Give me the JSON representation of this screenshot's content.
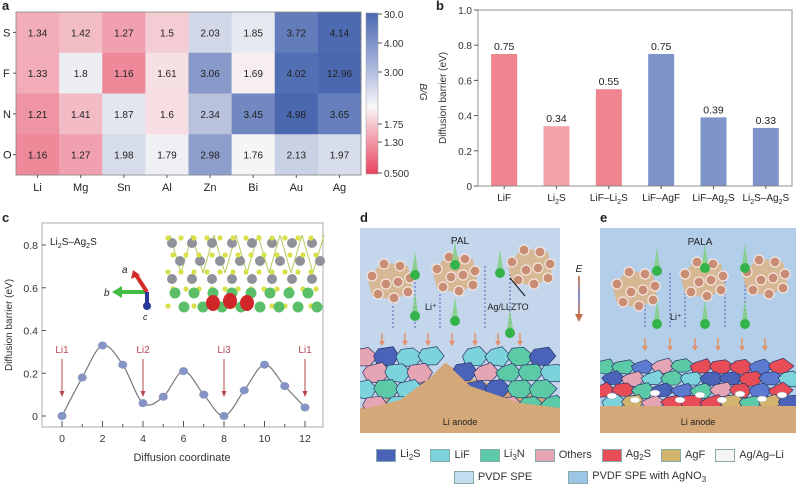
{
  "panels": {
    "a": "a",
    "b": "b",
    "c": "c",
    "d": "d",
    "e": "e"
  },
  "chart_data": [
    {
      "type": "heatmap",
      "panel": "a",
      "rows": [
        "S",
        "F",
        "N",
        "O"
      ],
      "columns": [
        "Li",
        "Mg",
        "Sn",
        "Al",
        "Zn",
        "Bi",
        "Au",
        "Ag"
      ],
      "values": [
        [
          1.34,
          1.42,
          1.27,
          1.5,
          2.03,
          1.85,
          3.72,
          4.14
        ],
        [
          1.33,
          1.8,
          1.16,
          1.61,
          3.06,
          1.69,
          4.02,
          12.96
        ],
        [
          1.21,
          1.41,
          1.87,
          1.6,
          2.34,
          3.45,
          4.98,
          3.65
        ],
        [
          1.16,
          1.27,
          1.98,
          1.79,
          2.98,
          1.76,
          2.13,
          1.97
        ]
      ],
      "value_labels": [
        [
          "1.34",
          "1.42",
          "1.27",
          "1.5",
          "2.03",
          "1.85",
          "3.72",
          "4.14"
        ],
        [
          "1.33",
          "1.8",
          "1.16",
          "1.61",
          "3.06",
          "1.69",
          "4.02",
          "12.96"
        ],
        [
          "1.21",
          "1.41",
          "1.87",
          "1.6",
          "2.34",
          "3.45",
          "4.98",
          "3.65"
        ],
        [
          "1.16",
          "1.27",
          "1.98",
          "1.79",
          "2.98",
          "1.76",
          "2.13",
          "1.97"
        ]
      ],
      "colorbar": {
        "label": "B/G",
        "ticks": [
          "30.0",
          "4.00",
          "3.00",
          "1.75",
          "1.30",
          "0.500"
        ],
        "low_color": "#e8435f",
        "mid_color": "#f8f8f8",
        "high_color": "#4a67b0"
      }
    },
    {
      "type": "bar",
      "panel": "b",
      "categories": [
        "LiF",
        "Li2S",
        "LiF–Li2S",
        "LiF–AgF",
        "LiF–Ag2S",
        "Li2S–Ag2S"
      ],
      "category_labels": [
        {
          "main": "LiF"
        },
        {
          "main": "Li",
          "sub": "2",
          "tail": "S"
        },
        {
          "main": "LiF–Li",
          "sub": "2",
          "tail": "S"
        },
        {
          "main": "LiF–AgF"
        },
        {
          "main": "LiF–Ag",
          "sub": "2",
          "tail": "S"
        },
        {
          "main": "Li",
          "sub": "2",
          "tail": "S–Ag",
          "sub2": "2",
          "tail2": "S"
        }
      ],
      "values": [
        0.75,
        0.34,
        0.55,
        0.75,
        0.39,
        0.33
      ],
      "value_labels": [
        "0.75",
        "0.34",
        "0.55",
        "0.75",
        "0.39",
        "0.33"
      ],
      "colors": [
        "#f08590",
        "#f4a3ad",
        "#f08590",
        "#7f94c9",
        "#7f94c9",
        "#7f94c9"
      ],
      "ylabel": "Diffusion barrier (eV)",
      "ylim": [
        0,
        1.0
      ],
      "yticks": [
        "0",
        "0.2",
        "0.4",
        "0.6",
        "0.8",
        "1.0"
      ]
    },
    {
      "type": "line",
      "panel": "c",
      "title": "Li2S–Ag2S",
      "x": [
        0,
        1,
        2,
        3,
        4,
        5,
        6,
        7,
        8,
        9,
        10,
        11,
        12
      ],
      "y": [
        0.0,
        0.18,
        0.33,
        0.24,
        0.06,
        0.09,
        0.21,
        0.1,
        0.0,
        0.12,
        0.24,
        0.14,
        0.04
      ],
      "xlabel": "Diffusion coordinate",
      "ylabel": "Diffusion barrier (eV)",
      "xlim": [
        -1,
        13
      ],
      "ylim": [
        -0.05,
        0.9
      ],
      "xticks": [
        "0",
        "2",
        "4",
        "6",
        "8",
        "10",
        "12"
      ],
      "yticks": [
        "0",
        "0.2",
        "0.4",
        "0.6",
        "0.8"
      ],
      "annotations": [
        {
          "text": "Li1",
          "x": 0
        },
        {
          "text": "Li2",
          "x": 4
        },
        {
          "text": "Li3",
          "x": 8
        },
        {
          "text": "Li1",
          "x": 12
        }
      ],
      "axes_labels": {
        "a": "a",
        "b": "b",
        "c": "c"
      },
      "point_color": "#8594c4",
      "line_color": "#777777",
      "arrow_color": "#b5484e"
    }
  ],
  "schematic_d": {
    "title": "PAL",
    "li_label": "Li⁺",
    "particle_label": "Ag/LLZTO",
    "anode_label": "Li anode"
  },
  "schematic_e": {
    "title": "PALA",
    "li_label": "Li⁺",
    "anode_label": "Li anode"
  },
  "field_label": "E",
  "legend": {
    "row1": [
      {
        "label": "Li",
        "sub": "2",
        "tail": "S",
        "color": "#4a62b8"
      },
      {
        "label": "LiF",
        "color": "#7dd3dc"
      },
      {
        "label": "Li",
        "sub": "3",
        "tail": "N",
        "color": "#5cc9a7"
      },
      {
        "label": "Others",
        "color": "#e6a5b5"
      },
      {
        "label": "Ag",
        "sub": "2",
        "tail": "S",
        "color": "#e74c57"
      },
      {
        "label": "AgF",
        "color": "#d2b46e"
      },
      {
        "label": "Ag/Ag–Li",
        "color": "#f4f4f4"
      }
    ],
    "row2": [
      {
        "label": "PVDF SPE",
        "color": "#c4dcf0"
      },
      {
        "label": "PVDF SPE with AgNO",
        "sub": "3",
        "color": "#9cc6e6"
      }
    ]
  }
}
